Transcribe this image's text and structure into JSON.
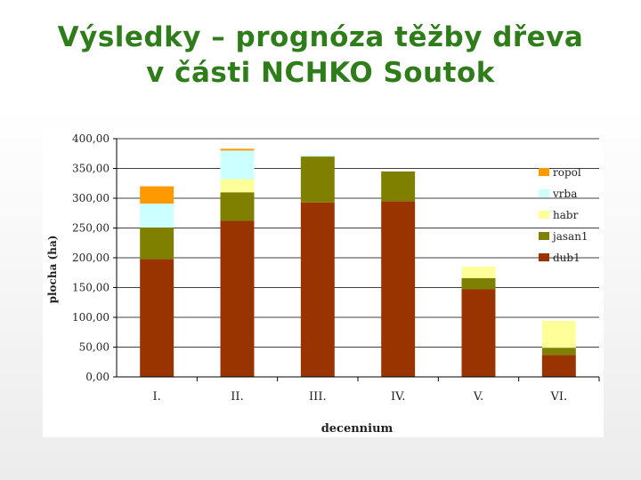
{
  "slide": {
    "title_line1": "Výsledky – prognóza těžby dřeva",
    "title_line2": "v části NCHKO Soutok"
  },
  "chart_data": {
    "type": "bar",
    "stacked": true,
    "categories": [
      "I.",
      "II.",
      "III.",
      "IV.",
      "V.",
      "VI."
    ],
    "series": [
      {
        "name": "dub1",
        "color": "#993300",
        "values": [
          198,
          262,
          293,
          295,
          147,
          37
        ]
      },
      {
        "name": "jasan1",
        "color": "#808000",
        "values": [
          53,
          48,
          77,
          50,
          19,
          12
        ]
      },
      {
        "name": "habr",
        "color": "#ffff99",
        "values": [
          0,
          22,
          0,
          0,
          19,
          45
        ]
      },
      {
        "name": "vrba",
        "color": "#ccffff",
        "values": [
          40,
          48,
          2,
          0,
          0,
          0
        ]
      },
      {
        "name": "ropol",
        "color": "#ff9900",
        "values": [
          29,
          3,
          0,
          0,
          0,
          0
        ]
      }
    ],
    "legend_order": [
      "ropol",
      "vrba",
      "habr",
      "jasan1",
      "dub1"
    ],
    "legend_position": "right",
    "ylim": [
      0,
      400
    ],
    "yticks": [
      "0,00",
      "50,00",
      "100,00",
      "150,00",
      "200,00",
      "250,00",
      "300,00",
      "350,00",
      "400,00"
    ],
    "ylabel": "plocha (ha)",
    "xlabel": "decennium",
    "grid": true
  }
}
